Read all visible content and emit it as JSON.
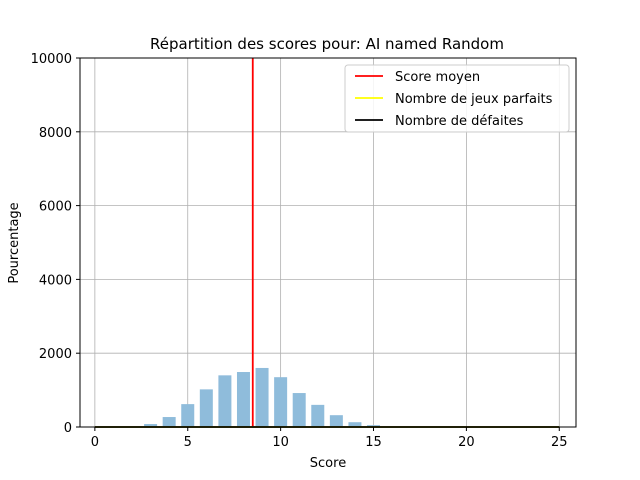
{
  "chart_data": {
    "type": "bar",
    "title": "Répartition des scores pour: AI named Random",
    "xlabel": "Score",
    "ylabel": "Pourcentage",
    "xlim": [
      -0.8,
      25.9
    ],
    "ylim": [
      0,
      10000
    ],
    "xticks": [
      0,
      5,
      10,
      15,
      20,
      25
    ],
    "yticks": [
      0,
      2000,
      4000,
      6000,
      8000,
      10000
    ],
    "grid": true,
    "legend_position": "top-right",
    "bar_color": "#8fbcdb",
    "bin_width": 0.7,
    "bars": [
      {
        "x": 3,
        "value": 80
      },
      {
        "x": 4,
        "value": 270
      },
      {
        "x": 5,
        "value": 620
      },
      {
        "x": 6,
        "value": 1020
      },
      {
        "x": 7,
        "value": 1400
      },
      {
        "x": 8,
        "value": 1490
      },
      {
        "x": 9,
        "value": 1600
      },
      {
        "x": 10,
        "value": 1350
      },
      {
        "x": 11,
        "value": 920
      },
      {
        "x": 12,
        "value": 600
      },
      {
        "x": 13,
        "value": 320
      },
      {
        "x": 14,
        "value": 130
      },
      {
        "x": 15,
        "value": 50
      }
    ],
    "lines": [
      {
        "name": "Score moyen",
        "color": "#ff0000",
        "orientation": "vertical",
        "x": 8.5
      },
      {
        "name": "Nombre de jeux parfaits",
        "color": "#ffff00",
        "orientation": "horizontal",
        "y": 0
      },
      {
        "name": "Nombre de défaites",
        "color": "#000000",
        "orientation": "horizontal",
        "y": 0
      }
    ]
  }
}
